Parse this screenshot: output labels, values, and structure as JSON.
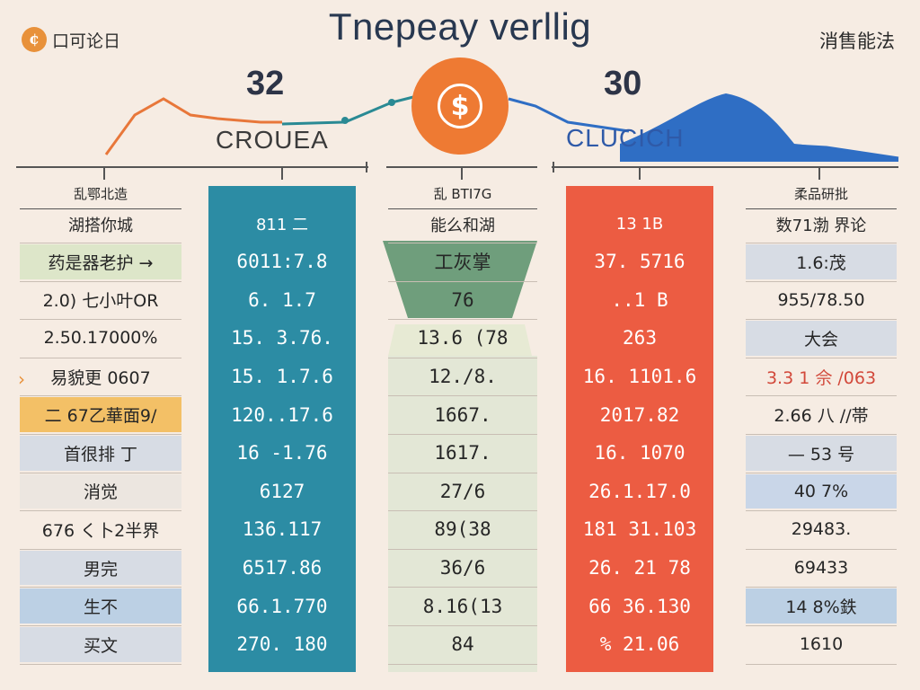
{
  "header": {
    "logo_text": "口可论日",
    "logo_icon": "coin-icon",
    "title": "Tnepeay verllig",
    "top_right": "消售能法",
    "num_left": "32",
    "num_right": "30",
    "coin_symbol": "$",
    "sub_left": "CROUEA",
    "sub_right": "CLUCICH"
  },
  "colors": {
    "background": "#f6ece3",
    "teal": "#2c8ca4",
    "red": "#ec5c42",
    "green_band": "#6f9e7c",
    "grey_band": "#d7dce4",
    "orange_line": "#e8773a",
    "blue_area": "#2f6ec4"
  },
  "columns": [
    {
      "header": "乱鄂北造",
      "subheader": "湖搭你城",
      "rows": [
        "药是器老护 →",
        "2.0) 七小叶OR",
        "2.50.17000%",
        "易貌更 0607",
        "二 67乙華面9/",
        "首很排 丁",
        "消觉",
        "676 く卜2半界",
        "男完",
        "生不",
        "买文"
      ]
    },
    {
      "header": "",
      "subheader": "811 二",
      "rows": [
        "6011:7.8",
        "6. 1.7",
        "15. 3.76.",
        "15. 1.7.6",
        "120..17.6",
        "16 -1.76",
        "6127",
        "136.117",
        "6517.86",
        "66.1.770",
        "270. 180"
      ]
    },
    {
      "header": "乱 BTI7G",
      "subheader": "能么和湖",
      "rows": [
        "工灰掌",
        "76",
        "13.6 (78",
        "12./8.",
        "1667.",
        "1617.",
        "27/6",
        "89(38",
        "36/6",
        "8.16(13",
        "84"
      ]
    },
    {
      "header": "",
      "subheader": "13 1B",
      "rows": [
        "37. 5716",
        "..1 B",
        "263",
        "16. 1101.6",
        "2017.82",
        "16. 1070",
        "26.1.17.0",
        "181 31.103",
        "26. 21 78",
        "66 36.130",
        "% 21.06"
      ]
    },
    {
      "header": "柔品研批",
      "subheader": "数71渤 界论",
      "rows": [
        "1.6:茂",
        "955/78.50",
        "大会",
        "3.3 1 佘 /063",
        "2.66 八 //帯",
        "— 53 号",
        "40 7%",
        "29483.",
        "69433",
        "14 8%鉄",
        "1610"
      ]
    }
  ]
}
